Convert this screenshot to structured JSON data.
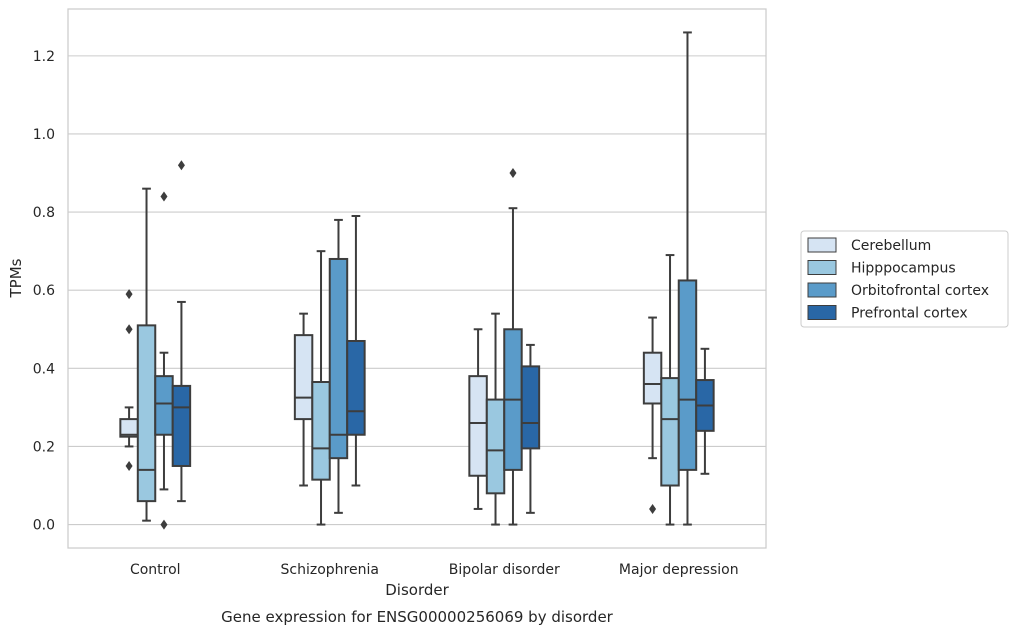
{
  "chart_data": {
    "type": "box",
    "caption": "Gene expression for ENSG00000256069 by disorder",
    "xlabel": "Disorder",
    "ylabel": "TPMs",
    "ylim": [
      -0.06,
      1.32
    ],
    "yticks": [
      "0.0",
      "0.2",
      "0.4",
      "0.6",
      "0.8",
      "1.0",
      "1.2"
    ],
    "grid": "horizontal",
    "legend_position": "right",
    "categories": [
      "Control",
      "Schizophrenia",
      "Bipolar disorder",
      "Major depression"
    ],
    "series": [
      {
        "name": "Cerebellum",
        "color": "#d6e4f3",
        "boxes": [
          {
            "whislo": 0.2,
            "q1": 0.225,
            "med": 0.23,
            "q3": 0.27,
            "whishi": 0.3,
            "fliers": [
              0.15,
              0.5,
              0.59
            ]
          },
          {
            "whislo": 0.1,
            "q1": 0.27,
            "med": 0.325,
            "q3": 0.485,
            "whishi": 0.54,
            "fliers": []
          },
          {
            "whislo": 0.04,
            "q1": 0.125,
            "med": 0.26,
            "q3": 0.38,
            "whishi": 0.5,
            "fliers": []
          },
          {
            "whislo": 0.17,
            "q1": 0.31,
            "med": 0.36,
            "q3": 0.44,
            "whishi": 0.53,
            "fliers": [
              0.04
            ]
          }
        ]
      },
      {
        "name": "Hipppocampus",
        "color": "#9ac8e0",
        "boxes": [
          {
            "whislo": 0.01,
            "q1": 0.06,
            "med": 0.14,
            "q3": 0.51,
            "whishi": 0.86,
            "fliers": []
          },
          {
            "whislo": 0.0,
            "q1": 0.115,
            "med": 0.195,
            "q3": 0.365,
            "whishi": 0.7,
            "fliers": []
          },
          {
            "whislo": 0.0,
            "q1": 0.08,
            "med": 0.19,
            "q3": 0.32,
            "whishi": 0.54,
            "fliers": []
          },
          {
            "whislo": 0.0,
            "q1": 0.1,
            "med": 0.27,
            "q3": 0.375,
            "whishi": 0.69,
            "fliers": []
          }
        ]
      },
      {
        "name": "Orbitofrontal cortex",
        "color": "#5a9bc9",
        "boxes": [
          {
            "whislo": 0.09,
            "q1": 0.23,
            "med": 0.31,
            "q3": 0.38,
            "whishi": 0.44,
            "fliers": [
              0.0,
              0.84
            ]
          },
          {
            "whislo": 0.03,
            "q1": 0.17,
            "med": 0.23,
            "q3": 0.68,
            "whishi": 0.78,
            "fliers": []
          },
          {
            "whislo": 0.0,
            "q1": 0.14,
            "med": 0.32,
            "q3": 0.5,
            "whishi": 0.81,
            "fliers": [
              0.9
            ]
          },
          {
            "whislo": 0.0,
            "q1": 0.14,
            "med": 0.32,
            "q3": 0.625,
            "whishi": 1.26,
            "fliers": []
          }
        ]
      },
      {
        "name": "Prefrontal cortex",
        "color": "#2967a6",
        "boxes": [
          {
            "whislo": 0.06,
            "q1": 0.15,
            "med": 0.3,
            "q3": 0.355,
            "whishi": 0.57,
            "fliers": [
              0.92
            ]
          },
          {
            "whislo": 0.1,
            "q1": 0.23,
            "med": 0.29,
            "q3": 0.47,
            "whishi": 0.79,
            "fliers": []
          },
          {
            "whislo": 0.03,
            "q1": 0.195,
            "med": 0.26,
            "q3": 0.405,
            "whishi": 0.46,
            "fliers": []
          },
          {
            "whislo": 0.13,
            "q1": 0.24,
            "med": 0.305,
            "q3": 0.37,
            "whishi": 0.45,
            "fliers": []
          }
        ]
      }
    ]
  }
}
